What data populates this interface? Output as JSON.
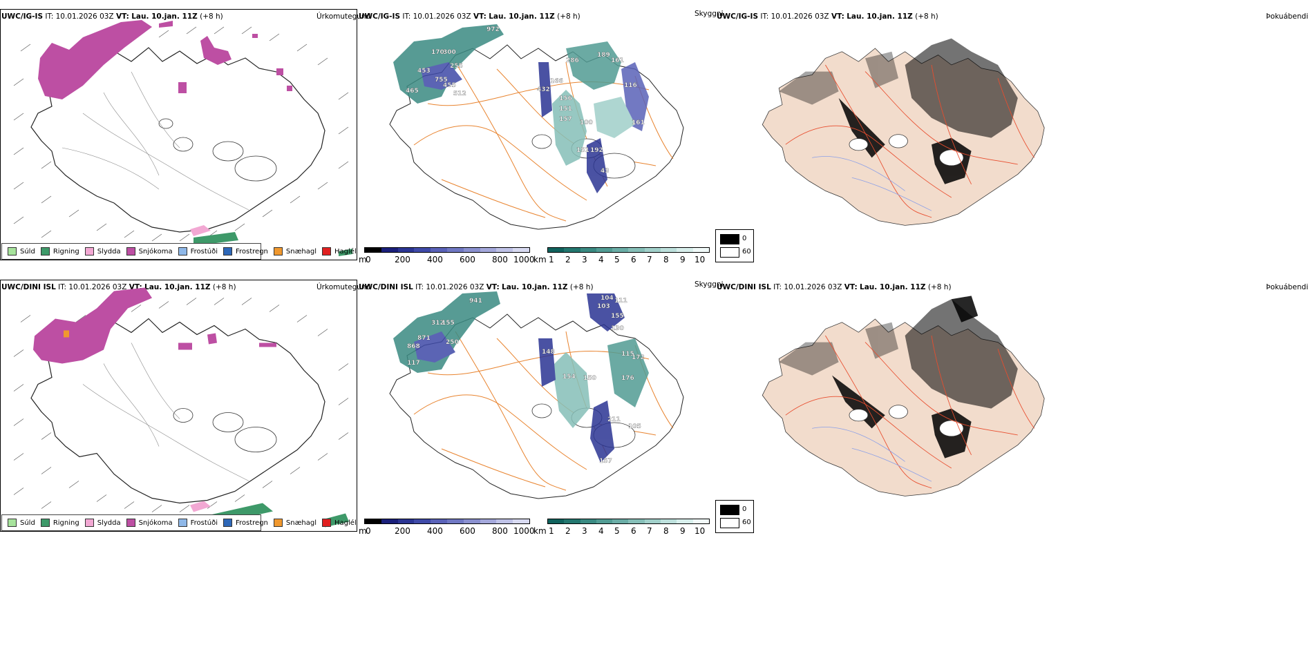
{
  "rows": [
    {
      "model": "UWC/IG-IS",
      "it_label": "IT:",
      "it_value": "10.01.2026 03Z",
      "vt_label": "VT:",
      "vt_value": "Lau. 10.jan. 11Z",
      "lead": "(+8 h)"
    },
    {
      "model": "UWC/DINI ISL",
      "it_label": "IT:",
      "it_value": "10.01.2026 03Z",
      "vt_label": "VT:",
      "vt_value": "Lau. 10.jan. 11Z",
      "lead": "(+8 h)"
    }
  ],
  "titles": {
    "precip": "Úrkomutegund",
    "visibility": "Skyggni",
    "cloud": "Þokuábendi"
  },
  "precip_legend": [
    {
      "label": "Súld",
      "color": "#a7e39c"
    },
    {
      "label": "Rigning",
      "color": "#3e9969"
    },
    {
      "label": "Slydda",
      "color": "#f2a8d3"
    },
    {
      "label": "Snjókoma",
      "color": "#bd4fa3"
    },
    {
      "label": "Frostúði",
      "color": "#8fb8e8"
    },
    {
      "label": "Frostregn",
      "color": "#2e68b8"
    },
    {
      "label": "Snæhagl",
      "color": "#f0982e"
    },
    {
      "label": "Haglél",
      "color": "#e02020"
    }
  ],
  "ceiling_scale": {
    "unit": "m",
    "ticks": [
      "0",
      "200",
      "400",
      "600",
      "800",
      "1000"
    ],
    "colors": [
      "#000000",
      "#1a1f7a",
      "#2b3593",
      "#3f4aa8",
      "#5a62b8",
      "#7078c3",
      "#8a90cf",
      "#a4a8db",
      "#bfc2e7",
      "#d8daf1"
    ]
  },
  "visibility_scale": {
    "unit": "km",
    "ticks": [
      "1",
      "2",
      "3",
      "4",
      "5",
      "6",
      "7",
      "8",
      "9",
      "10"
    ],
    "colors": [
      "#10625d",
      "#23776f",
      "#3a8a82",
      "#529c94",
      "#6bada6",
      "#86bfb8",
      "#a1d0ca",
      "#bde0dc",
      "#d8efec",
      "#f1faf9"
    ]
  },
  "fog_legend": [
    {
      "label": "0",
      "color": "#000000"
    },
    {
      "label": "60",
      "color": "#ffffff"
    }
  ],
  "ceiling_labels_top": [
    "972",
    "170",
    "300",
    "453",
    "255",
    "755",
    "455",
    "512",
    "465",
    "286",
    "189",
    "161",
    "432",
    "166",
    "116",
    "156",
    "151",
    "157",
    "100",
    "151",
    "192",
    "161",
    "43"
  ],
  "ceiling_labels_bottom": [
    "941",
    "312",
    "155",
    "871",
    "250",
    "868",
    "117",
    "104",
    "111",
    "103",
    "155",
    "130",
    "148",
    "154",
    "150",
    "115",
    "176",
    "172",
    "105",
    "211",
    "157"
  ]
}
